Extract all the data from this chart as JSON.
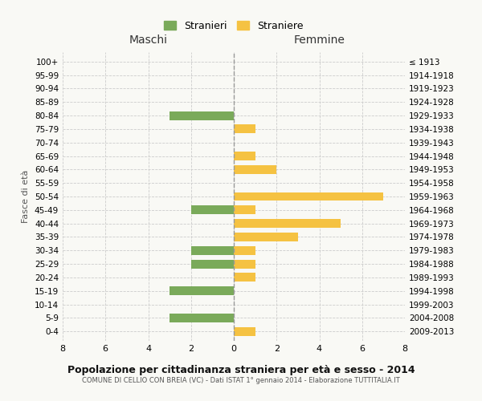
{
  "age_groups": [
    "100+",
    "95-99",
    "90-94",
    "85-89",
    "80-84",
    "75-79",
    "70-74",
    "65-69",
    "60-64",
    "55-59",
    "50-54",
    "45-49",
    "40-44",
    "35-39",
    "30-34",
    "25-29",
    "20-24",
    "15-19",
    "10-14",
    "5-9",
    "0-4"
  ],
  "birth_years": [
    "≤ 1913",
    "1914-1918",
    "1919-1923",
    "1924-1928",
    "1929-1933",
    "1934-1938",
    "1939-1943",
    "1944-1948",
    "1949-1953",
    "1954-1958",
    "1959-1963",
    "1964-1968",
    "1969-1973",
    "1974-1978",
    "1979-1983",
    "1984-1988",
    "1989-1993",
    "1994-1998",
    "1999-2003",
    "2004-2008",
    "2009-2013"
  ],
  "maschi": [
    0,
    0,
    0,
    0,
    3,
    0,
    0,
    0,
    0,
    0,
    0,
    2,
    0,
    0,
    2,
    2,
    0,
    3,
    0,
    3,
    0
  ],
  "femmine": [
    0,
    0,
    0,
    0,
    0,
    1,
    0,
    1,
    2,
    0,
    7,
    1,
    5,
    3,
    1,
    1,
    1,
    0,
    0,
    0,
    1
  ],
  "color_maschi": "#7aaa5a",
  "color_femmine": "#f5c242",
  "title": "Popolazione per cittadinanza straniera per età e sesso - 2014",
  "subtitle": "COMUNE DI CELLIO CON BREIA (VC) - Dati ISTAT 1° gennaio 2014 - Elaborazione TUTTITALIA.IT",
  "legend_maschi": "Stranieri",
  "legend_femmine": "Straniere",
  "xlabel_left": "Maschi",
  "xlabel_right": "Femmine",
  "ylabel_left": "Fasce di età",
  "xlim": 8,
  "background_color": "#f9f9f5",
  "grid_color": "#cccccc"
}
